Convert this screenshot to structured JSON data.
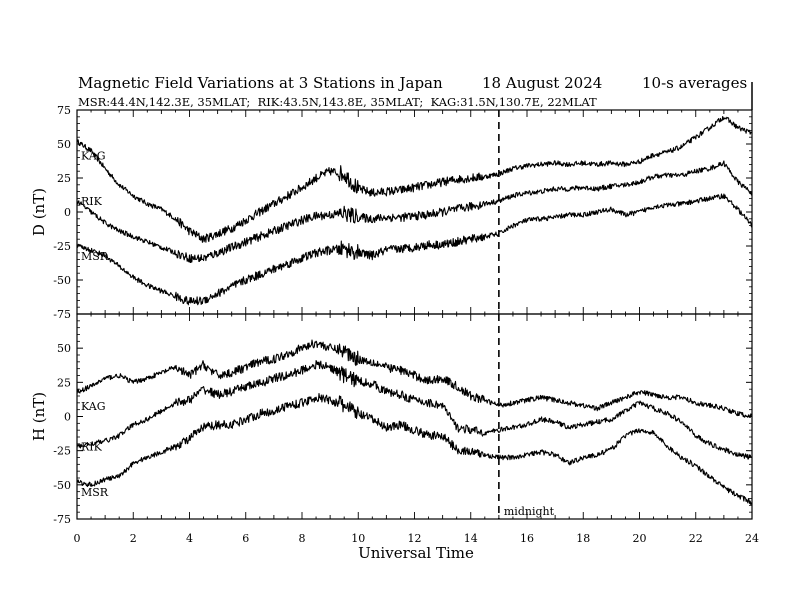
{
  "chart_data": {
    "type": "line",
    "title": "Magnetic Field Variations at 3 Stations in Japan",
    "date": "18  August  2024",
    "averaging": "10-s averages",
    "subtitle": "MSR:44.4N,142.3E, 35MLAT;  RIK:43.5N,143.8E, 35MLAT;  KAG:31.5N,130.7E, 22MLAT",
    "xlabel": "Universal Time",
    "xlim": [
      0,
      24
    ],
    "xticks": [
      "0",
      "2",
      "4",
      "6",
      "8",
      "10",
      "12",
      "14",
      "16",
      "18",
      "20",
      "22",
      "24"
    ],
    "midnight": {
      "x": 15,
      "label": "midnight"
    },
    "panels": [
      {
        "ylabel": "D (nT)",
        "ylim": [
          -75,
          75
        ],
        "yticks": [
          "75",
          "50",
          "25",
          "0",
          "-25",
          "-50",
          "-75"
        ],
        "series": [
          {
            "name": "KAG",
            "x": [
              0,
              0.5,
              1,
              1.5,
              2,
              2.5,
              3,
              3.5,
              4,
              4.5,
              5,
              5.5,
              6,
              6.5,
              7,
              7.5,
              8,
              8.5,
              9,
              9.5,
              10,
              10.5,
              11,
              11.5,
              12,
              12.5,
              13,
              13.5,
              14,
              14.5,
              15,
              15.5,
              16,
              16.5,
              17,
              17.5,
              18,
              18.5,
              19,
              19.5,
              20,
              20.5,
              21,
              21.5,
              22,
              22.5,
              23,
              23.5,
              24
            ],
            "values": [
              52,
              45,
              32,
              20,
              12,
              6,
              2,
              -5,
              -14,
              -20,
              -16,
              -12,
              -6,
              0,
              6,
              12,
              18,
              25,
              30,
              28,
              17,
              14,
              15,
              16,
              18,
              20,
              22,
              24,
              25,
              26,
              28,
              32,
              34,
              35,
              36,
              35,
              36,
              35,
              36,
              35,
              37,
              42,
              44,
              48,
              55,
              62,
              70,
              62,
              58
            ]
          },
          {
            "name": "RIK",
            "x": [
              0,
              0.5,
              1,
              1.5,
              2,
              2.5,
              3,
              3.5,
              4,
              4.5,
              5,
              5.5,
              6,
              6.5,
              7,
              7.5,
              8,
              8.5,
              9,
              9.5,
              10,
              10.5,
              11,
              11.5,
              12,
              12.5,
              13,
              13.5,
              14,
              14.5,
              15,
              15.5,
              16,
              16.5,
              17,
              17.5,
              18,
              18.5,
              19,
              19.5,
              20,
              20.5,
              21,
              21.5,
              22,
              22.5,
              23,
              23.5,
              24
            ],
            "values": [
              8,
              0,
              -8,
              -14,
              -18,
              -22,
              -26,
              -30,
              -34,
              -34,
              -30,
              -26,
              -22,
              -18,
              -14,
              -10,
              -6,
              -3,
              -2,
              -1,
              -4,
              -5,
              -4,
              -4,
              -3,
              -2,
              0,
              2,
              4,
              6,
              8,
              12,
              14,
              15,
              17,
              17,
              18,
              17,
              19,
              20,
              22,
              26,
              27,
              27,
              30,
              32,
              36,
              22,
              14
            ]
          },
          {
            "name": "MSR",
            "x": [
              0,
              0.5,
              1,
              1.5,
              2,
              2.5,
              3,
              3.5,
              4,
              4.5,
              5,
              5.5,
              6,
              6.5,
              7,
              7.5,
              8,
              8.5,
              9,
              9.5,
              10,
              10.5,
              11,
              11.5,
              12,
              12.5,
              13,
              13.5,
              14,
              14.5,
              15,
              15.5,
              16,
              16.5,
              17,
              17.5,
              18,
              18.5,
              19,
              19.5,
              20,
              20.5,
              21,
              21.5,
              22,
              22.5,
              23,
              23.5,
              24
            ],
            "values": [
              -25,
              -28,
              -32,
              -40,
              -48,
              -54,
              -58,
              -62,
              -66,
              -65,
              -60,
              -55,
              -50,
              -46,
              -42,
              -38,
              -34,
              -30,
              -28,
              -27,
              -30,
              -32,
              -28,
              -27,
              -26,
              -24,
              -24,
              -22,
              -20,
              -18,
              -16,
              -10,
              -6,
              -5,
              -4,
              -2,
              -2,
              0,
              2,
              -2,
              0,
              4,
              5,
              6,
              8,
              10,
              12,
              2,
              -10
            ]
          }
        ]
      },
      {
        "ylabel": "H (nT)",
        "ylim": [
          -75,
          75
        ],
        "yticks": [
          "75",
          "50",
          "25",
          "0",
          "-25",
          "-50",
          "-75"
        ],
        "series": [
          {
            "name": "KAG",
            "x": [
              0,
              0.5,
              1,
              1.5,
              2,
              2.5,
              3,
              3.5,
              4,
              4.5,
              5,
              5.5,
              6,
              6.5,
              7,
              7.5,
              8,
              8.5,
              9,
              9.5,
              10,
              10.5,
              11,
              11.5,
              12,
              12.5,
              13,
              13.5,
              14,
              14.5,
              15,
              15.5,
              16,
              16.5,
              17,
              17.5,
              18,
              18.5,
              19,
              19.5,
              20,
              20.5,
              21,
              21.5,
              22,
              22.5,
              23,
              23.5,
              24
            ],
            "values": [
              18,
              22,
              28,
              30,
              25,
              28,
              32,
              36,
              30,
              38,
              30,
              32,
              36,
              40,
              42,
              46,
              50,
              54,
              50,
              48,
              42,
              40,
              36,
              34,
              30,
              26,
              28,
              22,
              15,
              12,
              8,
              10,
              12,
              14,
              12,
              10,
              8,
              6,
              10,
              14,
              18,
              16,
              14,
              14,
              10,
              8,
              6,
              2,
              0
            ]
          },
          {
            "name": "RIK",
            "x": [
              0,
              0.5,
              1,
              1.5,
              2,
              2.5,
              3,
              3.5,
              4,
              4.5,
              5,
              5.5,
              6,
              6.5,
              7,
              7.5,
              8,
              8.5,
              9,
              9.5,
              10,
              10.5,
              11,
              11.5,
              12,
              12.5,
              13,
              13.5,
              14,
              14.5,
              15,
              15.5,
              16,
              16.5,
              17,
              17.5,
              18,
              18.5,
              19,
              19.5,
              20,
              20.5,
              21,
              21.5,
              22,
              22.5,
              23,
              23.5,
              24
            ],
            "values": [
              -22,
              -20,
              -18,
              -14,
              -6,
              -2,
              4,
              10,
              12,
              20,
              16,
              18,
              22,
              24,
              28,
              30,
              34,
              38,
              36,
              30,
              26,
              24,
              18,
              16,
              12,
              10,
              8,
              -8,
              -10,
              -12,
              -10,
              -8,
              -6,
              -2,
              -4,
              -8,
              -6,
              -4,
              -2,
              4,
              10,
              6,
              2,
              -4,
              -14,
              -20,
              -24,
              -28,
              -30
            ]
          },
          {
            "name": "MSR",
            "x": [
              0,
              0.5,
              1,
              1.5,
              2,
              2.5,
              3,
              3.5,
              4,
              4.5,
              5,
              5.5,
              6,
              6.5,
              7,
              7.5,
              8,
              8.5,
              9,
              9.5,
              10,
              10.5,
              11,
              11.5,
              12,
              12.5,
              13,
              13.5,
              14,
              14.5,
              15,
              15.5,
              16,
              16.5,
              17,
              17.5,
              18,
              18.5,
              19,
              19.5,
              20,
              20.5,
              21,
              21.5,
              22,
              22.5,
              23,
              23.5,
              24
            ],
            "values": [
              -48,
              -50,
              -46,
              -44,
              -34,
              -30,
              -26,
              -22,
              -16,
              -8,
              -6,
              -6,
              -2,
              2,
              4,
              8,
              10,
              14,
              12,
              8,
              2,
              -2,
              -8,
              -6,
              -10,
              -14,
              -14,
              -24,
              -26,
              -28,
              -30,
              -30,
              -28,
              -26,
              -28,
              -34,
              -30,
              -28,
              -24,
              -14,
              -10,
              -12,
              -22,
              -30,
              -36,
              -44,
              -52,
              -58,
              -63
            ]
          }
        ]
      }
    ]
  }
}
